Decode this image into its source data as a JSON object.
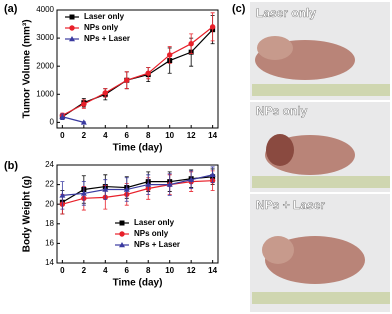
{
  "panel_labels": [
    "(a)",
    "(b)",
    "(c)"
  ],
  "photos": [
    {
      "label": "Laser only"
    },
    {
      "label": "NPs only"
    },
    {
      "label": "NPs + Laser"
    }
  ],
  "chart_data": [
    {
      "type": "line",
      "ylabel": "Tumor Volume (mm³)",
      "xlabel": "Time (day)",
      "xlim": [
        -0.5,
        14.5
      ],
      "xticks": [
        0,
        2,
        4,
        6,
        8,
        10,
        12,
        14
      ],
      "ylim": [
        -200,
        4000
      ],
      "yticks": [
        0,
        1000,
        2000,
        3000,
        4000
      ],
      "legend": "upper left",
      "x": [
        0,
        2,
        4,
        6,
        8,
        10,
        12,
        14
      ],
      "series": [
        {
          "name": "Laser only",
          "color": "#000000",
          "marker": "square",
          "values": [
            200,
            700,
            1000,
            1500,
            1700,
            2200,
            2500,
            3300
          ],
          "errors": [
            80,
            150,
            200,
            300,
            250,
            450,
            500,
            500
          ]
        },
        {
          "name": "NPs only",
          "color": "#e8202a",
          "marker": "circle",
          "values": [
            250,
            650,
            1050,
            1500,
            1750,
            2400,
            2800,
            3400
          ],
          "errors": [
            80,
            150,
            150,
            300,
            200,
            300,
            350,
            500
          ]
        },
        {
          "name": "NPs + Laser",
          "color": "#3a3aa0",
          "marker": "triangle",
          "values": [
            200,
            0,
            null,
            null,
            null,
            null,
            null,
            null
          ],
          "errors": [
            100,
            20,
            null,
            null,
            null,
            null,
            null,
            null
          ]
        }
      ]
    },
    {
      "type": "line",
      "ylabel": "Body Weight (g)",
      "xlabel": "Time (day)",
      "xlim": [
        -0.5,
        14.5
      ],
      "xticks": [
        0,
        2,
        4,
        6,
        8,
        10,
        12,
        14
      ],
      "ylim": [
        14,
        24
      ],
      "yticks": [
        14,
        16,
        18,
        20,
        22,
        24
      ],
      "legend": "lower right",
      "x": [
        0,
        2,
        4,
        6,
        8,
        10,
        12,
        14
      ],
      "series": [
        {
          "name": "Laser only",
          "color": "#000000",
          "marker": "square",
          "values": [
            20.2,
            21.5,
            21.8,
            21.7,
            22.3,
            22.3,
            22.6,
            22.8
          ],
          "errors": [
            1.2,
            1.4,
            1.2,
            1.1,
            1,
            1,
            0.9,
            0.8
          ]
        },
        {
          "name": "NPs only",
          "color": "#e8202a",
          "marker": "circle",
          "values": [
            20,
            20.6,
            20.7,
            21,
            21.6,
            22,
            22.3,
            22.4
          ],
          "errors": [
            1,
            1.2,
            1.2,
            1.1,
            1.1,
            1,
            1,
            1
          ]
        },
        {
          "name": "NPs + Laser",
          "color": "#3a3aa0",
          "marker": "triangle",
          "values": [
            20.9,
            21.1,
            21.5,
            21.5,
            22,
            22,
            22.5,
            23
          ],
          "errors": [
            1.4,
            1.2,
            1,
            1.2,
            1,
            1.1,
            0.9,
            0.8
          ]
        }
      ]
    }
  ]
}
